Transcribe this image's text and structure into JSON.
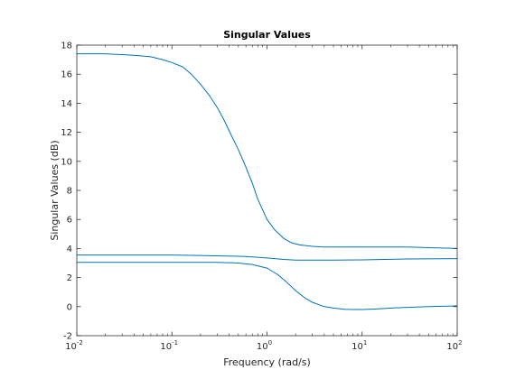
{
  "chart_data": {
    "type": "line",
    "title": "Singular Values",
    "xlabel": "Frequency (rad/s)",
    "ylabel": "Singular Values (dB)",
    "xscale": "log",
    "xlim": [
      0.01,
      100
    ],
    "ylim": [
      -2,
      18
    ],
    "x_ticks": [
      {
        "value": 0.01,
        "base": "10",
        "exp": "-2"
      },
      {
        "value": 0.1,
        "base": "10",
        "exp": "-1"
      },
      {
        "value": 1,
        "base": "10",
        "exp": "0"
      },
      {
        "value": 10,
        "base": "10",
        "exp": "1"
      },
      {
        "value": 100,
        "base": "10",
        "exp": "2"
      }
    ],
    "y_ticks": [
      -2,
      0,
      2,
      4,
      6,
      8,
      10,
      12,
      14,
      16,
      18
    ],
    "y_tick_labels": [
      "-2",
      "0",
      "2",
      "4",
      "6",
      "8",
      "10",
      "12",
      "14",
      "16",
      "18"
    ],
    "grid": false,
    "line_color": "#0072bd",
    "series": [
      {
        "x": [
          0.01,
          0.02,
          0.04,
          0.06,
          0.08,
          0.1,
          0.13,
          0.16,
          0.2,
          0.25,
          0.3,
          0.35,
          0.4,
          0.5,
          0.6,
          0.7,
          0.8,
          1.0,
          1.2,
          1.5,
          1.8,
          2.2,
          3,
          4,
          6,
          10,
          30,
          100
        ],
        "y": [
          17.4,
          17.4,
          17.3,
          17.2,
          17.0,
          16.8,
          16.5,
          16.0,
          15.3,
          14.5,
          13.7,
          12.9,
          12.1,
          10.8,
          9.6,
          8.5,
          7.4,
          6.0,
          5.3,
          4.7,
          4.4,
          4.25,
          4.15,
          4.1,
          4.1,
          4.1,
          4.1,
          4.0
        ]
      },
      {
        "x": [
          0.01,
          0.1,
          0.3,
          0.6,
          1.0,
          1.5,
          2,
          3,
          5,
          10,
          30,
          100
        ],
        "y": [
          3.55,
          3.55,
          3.5,
          3.45,
          3.35,
          3.25,
          3.2,
          3.2,
          3.2,
          3.22,
          3.28,
          3.3
        ]
      },
      {
        "x": [
          0.01,
          0.1,
          0.3,
          0.5,
          0.7,
          1.0,
          1.3,
          1.6,
          2.0,
          2.5,
          3.0,
          4.0,
          5.0,
          6.5,
          8,
          10,
          15,
          20,
          30,
          50,
          100
        ],
        "y": [
          3.05,
          3.05,
          3.05,
          3.0,
          2.9,
          2.65,
          2.2,
          1.7,
          1.1,
          0.6,
          0.3,
          0.0,
          -0.1,
          -0.18,
          -0.2,
          -0.2,
          -0.15,
          -0.1,
          -0.05,
          0.0,
          0.05
        ]
      }
    ]
  }
}
